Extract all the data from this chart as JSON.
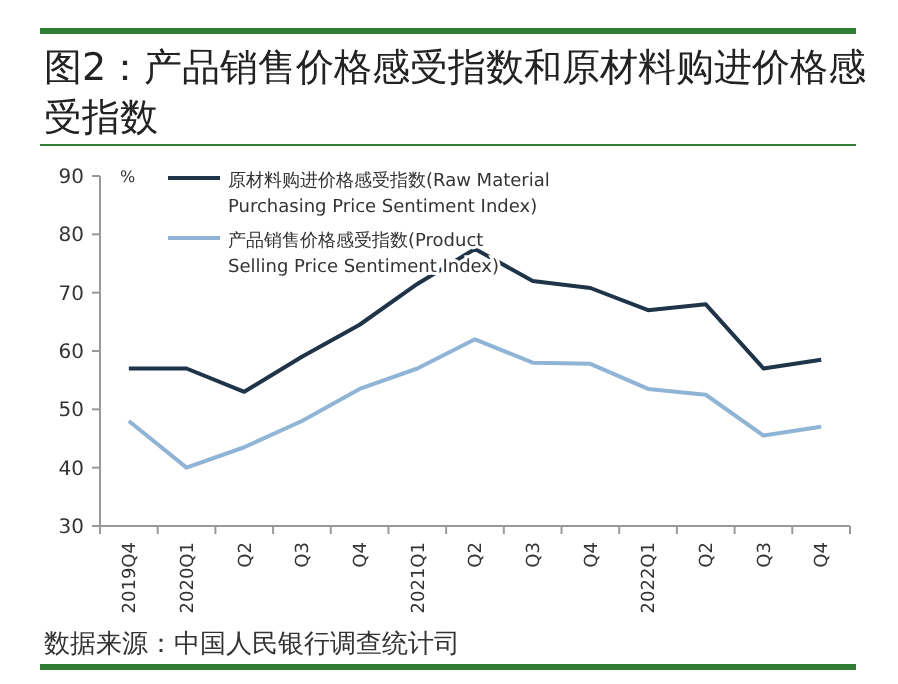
{
  "chart_data": {
    "type": "line",
    "title": "图2：产品销售价格感受指数和原材料购进价格感受指数",
    "ylabel": "%",
    "categories": [
      "2019Q4",
      "2020Q1",
      "Q2",
      "Q3",
      "Q4",
      "2021Q1",
      "Q2",
      "Q3",
      "Q4",
      "2022Q1",
      "Q2",
      "Q3",
      "Q4"
    ],
    "series": [
      {
        "name": "原材料购进价格感受指数(Raw Material Purchasing Price Sentiment Index)",
        "color": "#1f3349",
        "values": [
          57,
          57,
          53,
          59,
          64.5,
          71.5,
          77.5,
          72,
          70.8,
          67,
          68,
          57,
          58.5
        ]
      },
      {
        "name": "产品销售价格感受指数(Product Selling Price Sentiment Index)",
        "color": "#8fb4d6",
        "values": [
          48,
          40,
          43.5,
          48,
          53.5,
          57,
          62,
          58,
          57.8,
          53.5,
          52.5,
          45.5,
          47
        ]
      }
    ],
    "ylim": [
      30,
      90
    ],
    "yticks": [
      30,
      40,
      50,
      60,
      70,
      80,
      90
    ],
    "grid": false,
    "legend": "top left",
    "marker": "none",
    "line_style": "solid",
    "annotations": [
      "数据来源：中国人民银行调查统计司"
    ]
  }
}
